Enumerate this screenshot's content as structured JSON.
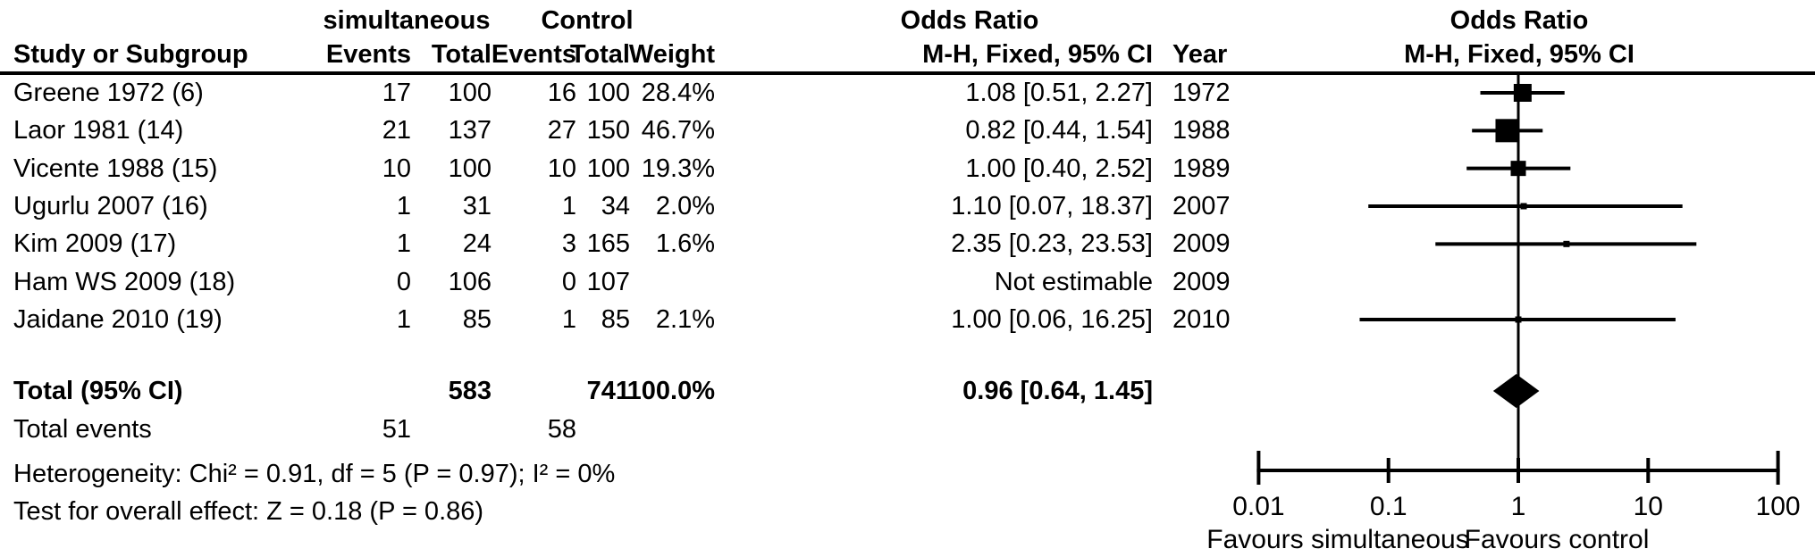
{
  "table": {
    "group1_header": "simultaneous",
    "group2_header": "Control",
    "or_header": "Odds Ratio",
    "or_subheader": "M-H, Fixed, 95% CI",
    "plot_header": "Odds Ratio",
    "plot_subheader": "M-H, Fixed, 95% CI",
    "col_study": "Study or Subgroup",
    "col_events1": "Events",
    "col_total1": "Total",
    "col_events2": "Events",
    "col_total2": "Total",
    "col_weight": "Weight",
    "col_year": "Year",
    "studies": [
      {
        "study": "Greene 1972 (6)",
        "e1": "17",
        "t1": "100",
        "e2": "16",
        "t2": "100",
        "weight": "28.4%",
        "or_text": "1.08 [0.51, 2.27]",
        "year": "1972"
      },
      {
        "study": "Laor 1981 (14)",
        "e1": "21",
        "t1": "137",
        "e2": "27",
        "t2": "150",
        "weight": "46.7%",
        "or_text": "0.82 [0.44, 1.54]",
        "year": "1988"
      },
      {
        "study": "Vicente 1988 (15)",
        "e1": "10",
        "t1": "100",
        "e2": "10",
        "t2": "100",
        "weight": "19.3%",
        "or_text": "1.00 [0.40, 2.52]",
        "year": "1989"
      },
      {
        "study": "Ugurlu 2007 (16)",
        "e1": "1",
        "t1": "31",
        "e2": "1",
        "t2": "34",
        "weight": "2.0%",
        "or_text": "1.10 [0.07, 18.37]",
        "year": "2007"
      },
      {
        "study": "Kim 2009 (17)",
        "e1": "1",
        "t1": "24",
        "e2": "3",
        "t2": "165",
        "weight": "1.6%",
        "or_text": "2.35 [0.23, 23.53]",
        "year": "2009"
      },
      {
        "study": "Ham WS 2009 (18)",
        "e1": "0",
        "t1": "106",
        "e2": "0",
        "t2": "107",
        "weight": "",
        "or_text": "Not estimable",
        "year": "2009"
      },
      {
        "study": "Jaidane 2010 (19)",
        "e1": "1",
        "t1": "85",
        "e2": "1",
        "t2": "85",
        "weight": "2.1%",
        "or_text": "1.00 [0.06, 16.25]",
        "year": "2010"
      }
    ],
    "total_row": {
      "label": "Total (95% CI)",
      "t1": "583",
      "t2": "741",
      "weight": "100.0%",
      "or_text": "0.96 [0.64, 1.45]"
    },
    "total_events": {
      "label": "Total events",
      "e1": "51",
      "e2": "58"
    },
    "heterogeneity": "Heterogeneity: Chi² = 0.91, df = 5 (P = 0.97); I² = 0%",
    "overall_effect": "Test for overall effect: Z = 0.18 (P = 0.86)"
  },
  "chart_data": {
    "type": "forest",
    "effect_measure": "Odds Ratio, M-H, Fixed, 95% CI",
    "scale": "log10",
    "x_ticks": [
      0.01,
      0.1,
      1,
      10,
      100
    ],
    "xlim": [
      0.01,
      100
    ],
    "null_line": 1,
    "studies": [
      {
        "name": "Greene 1972 (6)",
        "or": 1.08,
        "ci_low": 0.51,
        "ci_high": 2.27,
        "weight_pct": 28.4,
        "year": 1972
      },
      {
        "name": "Laor 1981 (14)",
        "or": 0.82,
        "ci_low": 0.44,
        "ci_high": 1.54,
        "weight_pct": 46.7,
        "year": 1988
      },
      {
        "name": "Vicente 1988 (15)",
        "or": 1.0,
        "ci_low": 0.4,
        "ci_high": 2.52,
        "weight_pct": 19.3,
        "year": 1989
      },
      {
        "name": "Ugurlu 2007 (16)",
        "or": 1.1,
        "ci_low": 0.07,
        "ci_high": 18.37,
        "weight_pct": 2.0,
        "year": 2007
      },
      {
        "name": "Kim 2009 (17)",
        "or": 2.35,
        "ci_low": 0.23,
        "ci_high": 23.53,
        "weight_pct": 1.6,
        "year": 2009
      },
      {
        "name": "Ham WS 2009 (18)",
        "or": null,
        "ci_low": null,
        "ci_high": null,
        "weight_pct": null,
        "year": 2009,
        "note": "Not estimable"
      },
      {
        "name": "Jaidane 2010 (19)",
        "or": 1.0,
        "ci_low": 0.06,
        "ci_high": 16.25,
        "weight_pct": 2.1,
        "year": 2010
      }
    ],
    "total": {
      "or": 0.96,
      "ci_low": 0.64,
      "ci_high": 1.45,
      "weight_pct": 100.0
    },
    "favours_left": "Favours simultaneous",
    "favours_right": "Favours control"
  }
}
